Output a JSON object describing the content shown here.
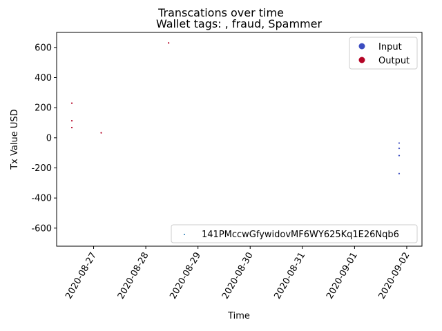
{
  "chart_data": {
    "type": "scatter",
    "title": "Transcations over time",
    "subtitle": "Wallet tags: , fraud, Spammer",
    "xlabel": "Time",
    "ylabel": "Tx Value USD",
    "xlim": [
      "2020-08-26T07:00",
      "2020-09-02T07:00"
    ],
    "ylim": [
      -720,
      700
    ],
    "x_ticks": [
      "2020-08-27",
      "2020-08-28",
      "2020-08-29",
      "2020-08-30",
      "2020-08-31",
      "2020-09-01",
      "2020-09-02"
    ],
    "y_ticks": [
      600,
      400,
      200,
      0,
      -200,
      -400,
      -600
    ],
    "grid": false,
    "colors": {
      "input": "#3b4cc0",
      "output": "#b40426",
      "wallet": "#1f77b4"
    },
    "legend_types": {
      "placement": "top-right",
      "entries": [
        {
          "label": "Input",
          "color": "#3b4cc0"
        },
        {
          "label": "Output",
          "color": "#b40426"
        }
      ]
    },
    "legend_wallet": {
      "placement": "bottom-right",
      "label": "141PMccwGfywidovMF6WY625Kq1E26Nqb6",
      "color": "#1f77b4"
    },
    "series": [
      {
        "name": "Output",
        "color": "#b40426",
        "points": [
          {
            "x": "2020-08-26T14:00",
            "y": 230
          },
          {
            "x": "2020-08-26T14:00",
            "y": 113
          },
          {
            "x": "2020-08-26T14:00",
            "y": 68
          },
          {
            "x": "2020-08-27T03:30",
            "y": 33
          },
          {
            "x": "2020-08-28T10:30",
            "y": 630
          }
        ]
      },
      {
        "name": "Input",
        "color": "#3b4cc0",
        "points": [
          {
            "x": "2020-09-01T20:30",
            "y": -35
          },
          {
            "x": "2020-09-01T20:30",
            "y": -70
          },
          {
            "x": "2020-09-01T20:30",
            "y": -118
          },
          {
            "x": "2020-09-01T20:30",
            "y": -238
          }
        ]
      }
    ]
  }
}
